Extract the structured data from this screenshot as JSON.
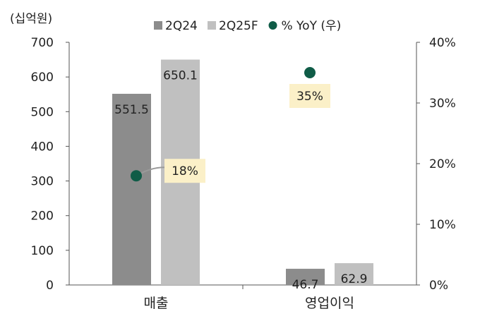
{
  "chart_data": {
    "type": "bar",
    "unit_label": "(십억원)",
    "categories": [
      "매출",
      "영업이익"
    ],
    "series": [
      {
        "name": "2Q24",
        "values": [
          551.5,
          46.7
        ],
        "labels": [
          "551.5",
          "46.7"
        ],
        "color": "#8c8c8c"
      },
      {
        "name": "2Q25F",
        "values": [
          650.1,
          62.9
        ],
        "labels": [
          "650.1",
          "62.9"
        ],
        "color": "#c0c0c0"
      }
    ],
    "yoy": {
      "name": "% YoY (우)",
      "values": [
        18,
        35
      ],
      "labels": [
        "18%",
        "35%"
      ],
      "color": "#0f5c47",
      "callout_color": "#fbf0c8"
    },
    "ylim_left": [
      0,
      700
    ],
    "yticks_left": [
      "0",
      "100",
      "200",
      "300",
      "400",
      "500",
      "600",
      "700"
    ],
    "ylim_right": [
      0,
      40
    ],
    "yticks_right": [
      "0%",
      "10%",
      "20%",
      "30%",
      "40%"
    ],
    "grid": false,
    "legend": "top"
  }
}
